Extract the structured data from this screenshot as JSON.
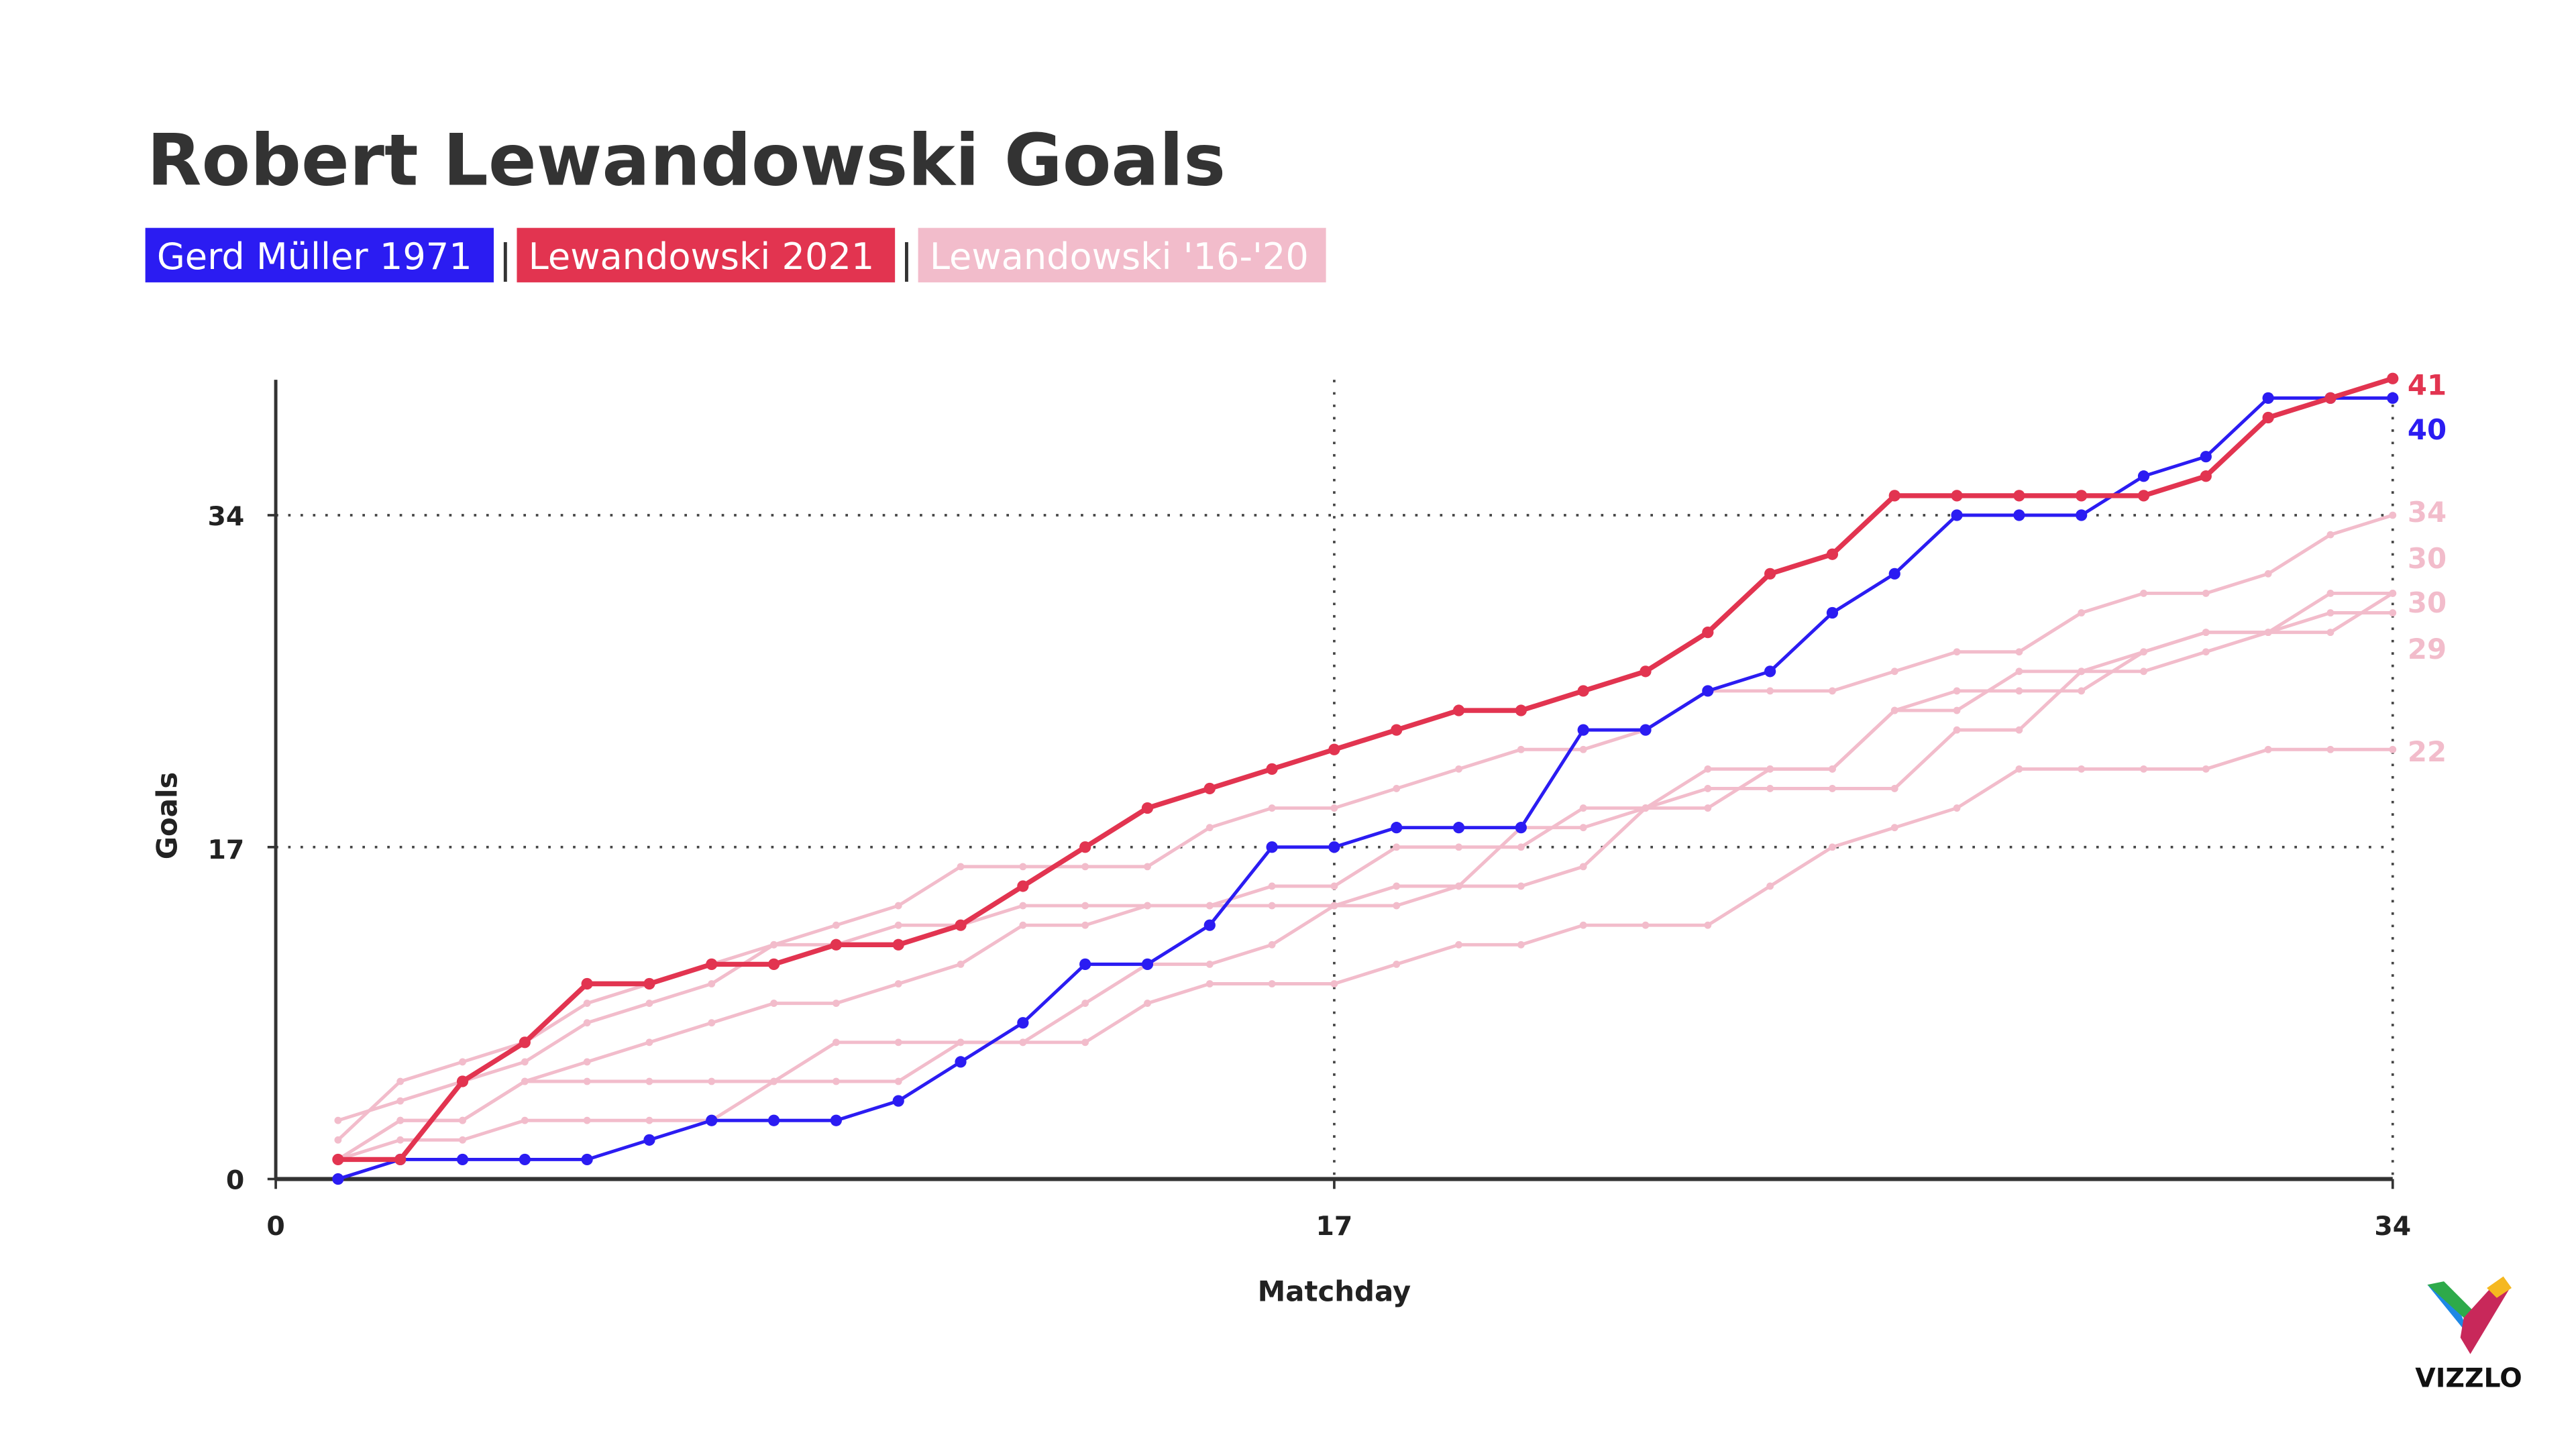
{
  "title": "Robert Lewandowski Goals",
  "legend": [
    {
      "label": "Gerd Müller 1971",
      "color": "#2b1cf2"
    },
    {
      "label": "Lewandowski 2021",
      "color": "#e23450"
    },
    {
      "label": "Lewandowski '16-'20",
      "color": "#f2bccb"
    }
  ],
  "legend_separator": "|",
  "logo": {
    "text": "VIZZLO"
  },
  "chart_data": {
    "type": "line",
    "title": "Robert Lewandowski Goals",
    "xlabel": "Matchday",
    "ylabel": "Goals",
    "xlim": [
      0,
      34
    ],
    "ylim": [
      0,
      41
    ],
    "x_ticks": [
      "0",
      "17",
      "34"
    ],
    "y_ticks": [
      "0",
      "17",
      "34"
    ],
    "grid": "dotted at 17 and 34",
    "legend_placement": "top-left",
    "x": [
      1,
      2,
      3,
      4,
      5,
      6,
      7,
      8,
      9,
      10,
      11,
      12,
      13,
      14,
      15,
      16,
      17,
      18,
      19,
      20,
      21,
      22,
      23,
      24,
      25,
      26,
      27,
      28,
      29,
      30,
      31,
      32,
      33,
      34
    ],
    "series": [
      {
        "name": "Lewandowski '16-'20",
        "color": "#f2bccb",
        "end_label": "34",
        "values": [
          3,
          4,
          5,
          6,
          8,
          9,
          10,
          12,
          13,
          14,
          16,
          16,
          16,
          16,
          18,
          19,
          19,
          20,
          21,
          22,
          22,
          23,
          25,
          25,
          25,
          26,
          27,
          27,
          29,
          30,
          30,
          31,
          33,
          34
        ]
      },
      {
        "name": "Lewandowski '16-'20",
        "color": "#f2bccb",
        "end_label": "30",
        "values": [
          2,
          5,
          6,
          7,
          9,
          10,
          11,
          12,
          12,
          13,
          13,
          14,
          14,
          14,
          14,
          15,
          15,
          17,
          17,
          17,
          19,
          19,
          21,
          21,
          21,
          24,
          24,
          26,
          26,
          27,
          28,
          28,
          30,
          30
        ]
      },
      {
        "name": "Lewandowski '16-'20",
        "color": "#f2bccb",
        "end_label": "30",
        "values": [
          1,
          3,
          3,
          5,
          5,
          5,
          5,
          5,
          5,
          5,
          7,
          7,
          9,
          11,
          11,
          12,
          14,
          14,
          15,
          15,
          16,
          19,
          20,
          20,
          20,
          20,
          23,
          23,
          26,
          26,
          27,
          28,
          28,
          30
        ]
      },
      {
        "name": "Lewandowski '16-'20",
        "color": "#f2bccb",
        "end_label": "29",
        "values": [
          1,
          3,
          3,
          5,
          6,
          7,
          8,
          9,
          9,
          10,
          11,
          13,
          13,
          14,
          14,
          14,
          14,
          15,
          15,
          18,
          18,
          19,
          19,
          21,
          21,
          24,
          25,
          25,
          25,
          27,
          28,
          28,
          29,
          29
        ]
      },
      {
        "name": "Lewandowski '16-'20",
        "color": "#f2bccb",
        "end_label": "22",
        "values": [
          1,
          2,
          2,
          3,
          3,
          3,
          3,
          5,
          7,
          7,
          7,
          7,
          7,
          9,
          10,
          10,
          10,
          11,
          12,
          12,
          13,
          13,
          13,
          15,
          17,
          18,
          19,
          21,
          21,
          21,
          21,
          22,
          22,
          22
        ]
      },
      {
        "name": "Gerd Müller 1971",
        "color": "#2b1cf2",
        "end_label": "40",
        "values": [
          0,
          1,
          1,
          1,
          1,
          2,
          3,
          3,
          3,
          4,
          6,
          8,
          11,
          11,
          13,
          17,
          17,
          18,
          18,
          18,
          23,
          23,
          25,
          26,
          29,
          31,
          34,
          34,
          34,
          36,
          37,
          40,
          40,
          40
        ]
      },
      {
        "name": "Lewandowski 2021",
        "color": "#e23450",
        "end_label": "41",
        "values": [
          1,
          1,
          5,
          7,
          10,
          10,
          11,
          11,
          12,
          12,
          13,
          15,
          17,
          19,
          20,
          21,
          22,
          23,
          24,
          24,
          25,
          26,
          28,
          31,
          32,
          35,
          35,
          35,
          35,
          35,
          36,
          39,
          40,
          41
        ]
      }
    ]
  }
}
